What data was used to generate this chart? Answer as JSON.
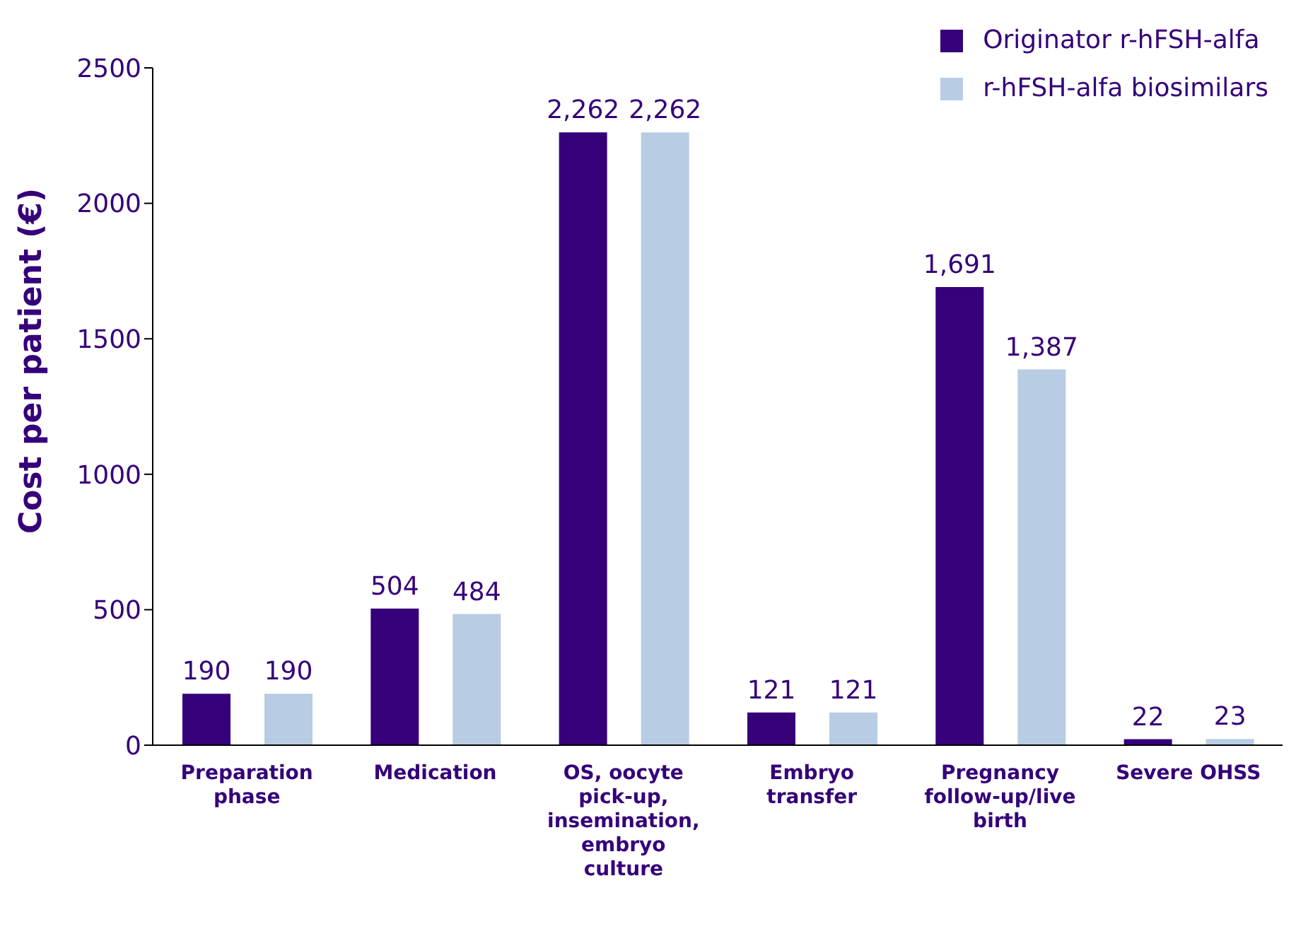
{
  "chart_data": {
    "type": "bar",
    "ylabel": "Cost per patient (€)",
    "categories": [
      "Preparation phase",
      "Medication",
      "OS, oocyte pick-up, insemination, embryo culture",
      "Embryo transfer",
      "Pregnancy follow-up/live birth",
      "Severe OHSS"
    ],
    "series": [
      {
        "name": "Originator r-hFSH-alfa",
        "color": "#35007a",
        "values": [
          190,
          504,
          2262,
          121,
          1691,
          22
        ],
        "value_labels": [
          "190",
          "504",
          "2,262",
          "121",
          "1,691",
          "22"
        ]
      },
      {
        "name": "r-hFSH-alfa biosimilars",
        "color": "#b8cce4",
        "values": [
          190,
          484,
          2262,
          121,
          1387,
          23
        ],
        "value_labels": [
          "190",
          "484",
          "2,262",
          "121",
          "1,387",
          "23"
        ]
      }
    ],
    "ylim": [
      0,
      2500
    ],
    "yticks": [
      0,
      500,
      1000,
      1500,
      2000,
      2500
    ],
    "grid": false,
    "legend": "top right"
  }
}
